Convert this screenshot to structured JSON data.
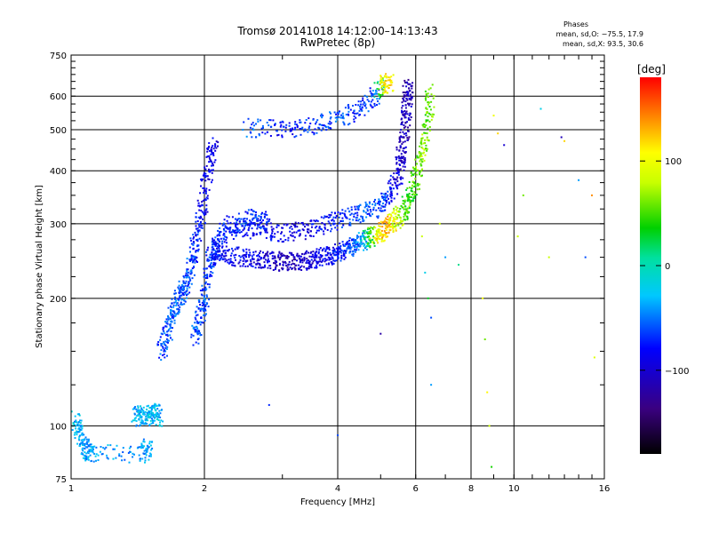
{
  "chart_data": {
    "type": "scatter",
    "title": "Tromsø 20141018 14:12:00–14:13:43",
    "subtitle": "RwPretec (8p)",
    "xlabel": "Frequency [MHz]",
    "ylabel": "Stationary phase Virtual Height [km]",
    "xscale": "log",
    "yscale": "log",
    "xlim": [
      1,
      16
    ],
    "ylim": [
      75,
      750
    ],
    "x_ticks": [
      1,
      2,
      4,
      6,
      8,
      10,
      16
    ],
    "x_tick_labels": [
      "1",
      "2",
      "4",
      "6",
      "8",
      "10",
      "16"
    ],
    "y_ticks": [
      75,
      100,
      200,
      300,
      400,
      500,
      600,
      750
    ],
    "y_tick_labels": [
      "75",
      "100",
      "200",
      "300",
      "400",
      "500",
      "600",
      "750"
    ],
    "x_gridlines": [
      2,
      4,
      6,
      8,
      10
    ],
    "y_gridlines": [
      100,
      200,
      300,
      400,
      500,
      600
    ],
    "phases_box": {
      "title": "Phases",
      "line1": "mean, sd,O: −75.5, 17.9",
      "line2": "mean, sd,X:  93.5, 30.6"
    },
    "colorbar": {
      "unit_label": "[deg]",
      "range": [
        -180,
        180
      ],
      "tick_values": [
        100,
        0,
        -100
      ],
      "tick_labels": [
        "100",
        "0",
        "−100"
      ]
    },
    "series": [
      {
        "name": "main-trace",
        "segments": [
          {
            "pts": [
              [
                1.02,
                104,
                -20
              ],
              [
                1.05,
                95,
                -40
              ],
              [
                1.08,
                88,
                -40
              ],
              [
                1.12,
                86,
                -40
              ],
              [
                1.45,
                86,
                -40
              ],
              [
                1.5,
                90,
                -40
              ]
            ]
          },
          {
            "pts": [
              [
                1.4,
                108,
                -30
              ],
              [
                1.45,
                104,
                -30
              ],
              [
                1.5,
                106,
                -30
              ],
              [
                1.55,
                108,
                -30
              ],
              [
                1.58,
                104,
                -30
              ]
            ]
          },
          {
            "pts": [
              [
                1.6,
                150,
                -60
              ],
              [
                1.65,
                165,
                -60
              ],
              [
                1.7,
                185,
                -55
              ],
              [
                1.75,
                200,
                -55
              ],
              [
                1.8,
                210,
                -60
              ],
              [
                1.85,
                230,
                -60
              ],
              [
                1.9,
                260,
                -70
              ],
              [
                1.95,
                300,
                -80
              ],
              [
                2.0,
                350,
                -90
              ],
              [
                2.05,
                420,
                -90
              ],
              [
                2.1,
                460,
                -90
              ]
            ]
          },
          {
            "pts": [
              [
                1.9,
                160,
                -60
              ],
              [
                1.95,
                180,
                -60
              ],
              [
                2.0,
                200,
                -60
              ],
              [
                2.05,
                240,
                -70
              ],
              [
                2.1,
                260,
                -70
              ],
              [
                2.2,
                280,
                -70
              ],
              [
                2.4,
                300,
                -70
              ],
              [
                2.6,
                310,
                -70
              ],
              [
                2.8,
                300,
                -70
              ]
            ]
          },
          {
            "pts": [
              [
                2.1,
                260,
                -80
              ],
              [
                2.2,
                255,
                -80
              ],
              [
                2.4,
                250,
                -85
              ],
              [
                2.6,
                248,
                -90
              ],
              [
                2.8,
                246,
                -100
              ],
              [
                3.0,
                244,
                -110
              ],
              [
                3.2,
                244,
                -110
              ],
              [
                3.4,
                246,
                -100
              ],
              [
                3.6,
                248,
                -90
              ],
              [
                3.8,
                252,
                -90
              ],
              [
                4.0,
                256,
                -80
              ],
              [
                4.2,
                262,
                -70
              ],
              [
                4.4,
                268,
                -60
              ],
              [
                4.6,
                274,
                -30
              ],
              [
                4.8,
                280,
                60
              ],
              [
                5.0,
                285,
                120
              ],
              [
                5.2,
                295,
                130
              ],
              [
                5.4,
                305,
                90
              ],
              [
                5.6,
                320,
                60
              ],
              [
                5.8,
                340,
                40
              ],
              [
                6.0,
                380,
                50
              ],
              [
                6.2,
                440,
                70
              ],
              [
                6.4,
                520,
                60
              ],
              [
                6.5,
                620,
                50
              ]
            ]
          },
          {
            "pts": [
              [
                2.2,
                300,
                -70
              ],
              [
                2.6,
                290,
                -80
              ],
              [
                3.0,
                285,
                -90
              ],
              [
                3.4,
                290,
                -90
              ],
              [
                3.8,
                300,
                -80
              ],
              [
                4.2,
                310,
                -70
              ],
              [
                4.6,
                320,
                -60
              ],
              [
                5.0,
                330,
                -60
              ],
              [
                5.3,
                360,
                -80
              ],
              [
                5.5,
                400,
                -100
              ],
              [
                5.6,
                450,
                -110
              ],
              [
                5.7,
                520,
                -110
              ],
              [
                5.75,
                600,
                -110
              ],
              [
                5.8,
                640,
                -110
              ]
            ]
          },
          {
            "pts": [
              [
                2.5,
                505,
                -50
              ],
              [
                3.0,
                500,
                -80
              ],
              [
                3.5,
                510,
                -70
              ],
              [
                4.0,
                530,
                -60
              ],
              [
                4.5,
                560,
                -70
              ],
              [
                4.9,
                610,
                -60
              ],
              [
                5.1,
                645,
                120
              ],
              [
                5.3,
                640,
                100
              ]
            ]
          }
        ]
      },
      {
        "name": "scatter-points",
        "points": [
          [
            6.2,
            280,
            80
          ],
          [
            6.3,
            230,
            -20
          ],
          [
            6.4,
            200,
            30
          ],
          [
            6.5,
            180,
            -60
          ],
          [
            6.8,
            300,
            80
          ],
          [
            7.0,
            250,
            -40
          ],
          [
            7.5,
            240,
            10
          ],
          [
            8.5,
            200,
            100
          ],
          [
            8.6,
            160,
            60
          ],
          [
            8.7,
            120,
            110
          ],
          [
            8.8,
            100,
            80
          ],
          [
            8.9,
            80,
            40
          ],
          [
            9.0,
            540,
            100
          ],
          [
            9.2,
            490,
            120
          ],
          [
            9.5,
            460,
            -100
          ],
          [
            10.2,
            280,
            80
          ],
          [
            10.5,
            350,
            60
          ],
          [
            11.5,
            560,
            -20
          ],
          [
            12.0,
            250,
            80
          ],
          [
            12.8,
            480,
            -110
          ],
          [
            13.0,
            470,
            120
          ],
          [
            14.0,
            380,
            -40
          ],
          [
            14.5,
            250,
            -60
          ],
          [
            15.0,
            350,
            140
          ],
          [
            15.2,
            145,
            90
          ],
          [
            5.0,
            165,
            -120
          ],
          [
            6.5,
            125,
            -40
          ],
          [
            4.0,
            95,
            -60
          ],
          [
            2.8,
            112,
            -70
          ]
        ]
      }
    ]
  }
}
